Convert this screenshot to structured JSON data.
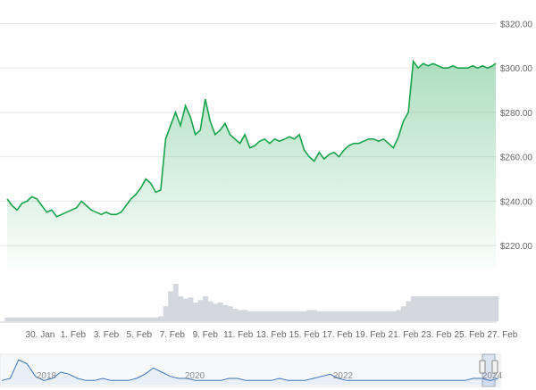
{
  "chart_data": {
    "type": "area",
    "title": "",
    "xlabel": "",
    "ylabel": "",
    "ylim": [
      210,
      325
    ],
    "y_ticks": [
      "$220.00",
      "$240.00",
      "$260.00",
      "$280.00",
      "$300.00",
      "$320.00"
    ],
    "y_tick_values": [
      220,
      240,
      260,
      280,
      300,
      320
    ],
    "x_tick_labels": [
      "30. Jan",
      "1. Feb",
      "3. Feb",
      "5. Feb",
      "7. Feb",
      "9. Feb",
      "11. Feb",
      "13. Feb",
      "15. Feb",
      "17. Feb",
      "19. Feb",
      "21. Feb",
      "23. Feb",
      "25. Feb",
      "27. Feb"
    ],
    "x_range_days": [
      28.0,
      57.6
    ],
    "grid": true,
    "colors": {
      "line": "#16a34a",
      "fill_top": "#16a34a",
      "volume": "#d4d8de",
      "navigator_line": "#3b73b9",
      "axis_text": "#666666"
    },
    "series": [
      {
        "x": [
          28.0,
          28.3,
          28.6,
          28.9,
          29.2,
          29.5,
          29.8,
          30.1,
          30.4,
          30.7,
          31.0,
          31.3,
          31.6,
          31.9,
          32.2,
          32.5,
          32.8,
          33.1,
          33.4,
          33.7,
          34.0,
          34.3,
          34.6,
          34.9,
          35.2,
          35.5,
          35.8,
          36.1,
          36.4,
          36.7,
          37.0,
          37.3,
          37.6,
          37.9,
          38.2,
          38.5,
          38.8,
          39.1,
          39.4,
          39.7,
          40.0,
          40.3,
          40.6,
          40.9,
          41.2,
          41.5,
          41.8,
          42.1,
          42.4,
          42.7,
          43.0,
          43.3,
          43.6,
          43.9,
          44.2,
          44.5,
          44.8,
          45.1,
          45.4,
          45.7,
          46.0,
          46.3,
          46.6,
          46.9,
          47.2,
          47.5,
          47.8,
          48.1,
          48.4,
          48.7,
          49.0,
          49.3,
          49.6,
          49.9,
          50.2,
          50.5,
          50.8,
          51.1,
          51.4,
          51.7,
          52.0,
          52.3,
          52.6,
          52.9,
          53.2,
          53.5,
          53.8,
          54.1,
          54.4,
          54.7,
          55.0,
          55.3,
          55.6,
          55.9,
          56.2,
          56.5,
          56.8,
          57.1,
          57.4,
          57.6
        ],
        "values": [
          241,
          238,
          236,
          239,
          240,
          242,
          241,
          238,
          235,
          236,
          233,
          234,
          235,
          236,
          237,
          240,
          238,
          236,
          235,
          234,
          235,
          234,
          234,
          235,
          238,
          241,
          243,
          246,
          250,
          248,
          244,
          245,
          268,
          274,
          280,
          274,
          283,
          278,
          270,
          272,
          286,
          276,
          270,
          272,
          275,
          270,
          268,
          266,
          270,
          264,
          265,
          267,
          268,
          266,
          268,
          267,
          268,
          269,
          268,
          270,
          263,
          260,
          258,
          262,
          259,
          261,
          262,
          260,
          263,
          265,
          266,
          266,
          267,
          268,
          268,
          267,
          268,
          266,
          264,
          269,
          276,
          280,
          303,
          300,
          302,
          301,
          302,
          301,
          300,
          300,
          301,
          300,
          300,
          300,
          301,
          300,
          301,
          300,
          301,
          302
        ]
      }
    ],
    "volume": [
      3,
      3,
      3,
      3,
      3,
      3,
      3,
      3,
      3,
      3,
      3,
      3,
      3,
      3,
      3,
      3,
      3,
      3,
      3,
      3,
      3,
      3,
      3,
      3,
      3,
      3,
      3,
      3,
      3,
      3,
      3,
      4,
      12,
      24,
      30,
      20,
      18,
      19,
      15,
      17,
      20,
      16,
      14,
      15,
      13,
      12,
      10,
      9,
      9,
      8,
      8,
      8,
      8,
      8,
      8,
      8,
      8,
      8,
      8,
      8,
      8,
      9,
      9,
      8,
      8,
      8,
      8,
      8,
      8,
      8,
      8,
      8,
      8,
      8,
      8,
      8,
      8,
      8,
      8,
      9,
      12,
      16,
      20,
      20,
      20,
      20,
      20,
      20,
      20,
      20,
      20,
      20,
      20,
      20,
      20,
      20,
      20,
      20,
      20,
      20
    ],
    "navigator": {
      "labels": [
        "2018",
        "2020",
        "2022",
        "2024"
      ],
      "values": [
        2,
        3,
        12,
        10,
        4,
        2,
        3,
        6,
        5,
        3,
        2,
        2,
        3,
        2,
        2,
        2,
        3,
        5,
        8,
        6,
        4,
        3,
        3,
        2,
        2,
        2,
        2,
        3,
        3,
        2,
        2,
        2,
        2,
        3,
        2,
        2,
        2,
        3,
        4,
        5,
        3,
        2,
        2,
        2,
        2,
        2,
        2,
        2,
        2,
        2,
        2,
        2,
        2,
        2,
        2,
        2,
        3,
        3,
        2,
        3
      ]
    }
  }
}
